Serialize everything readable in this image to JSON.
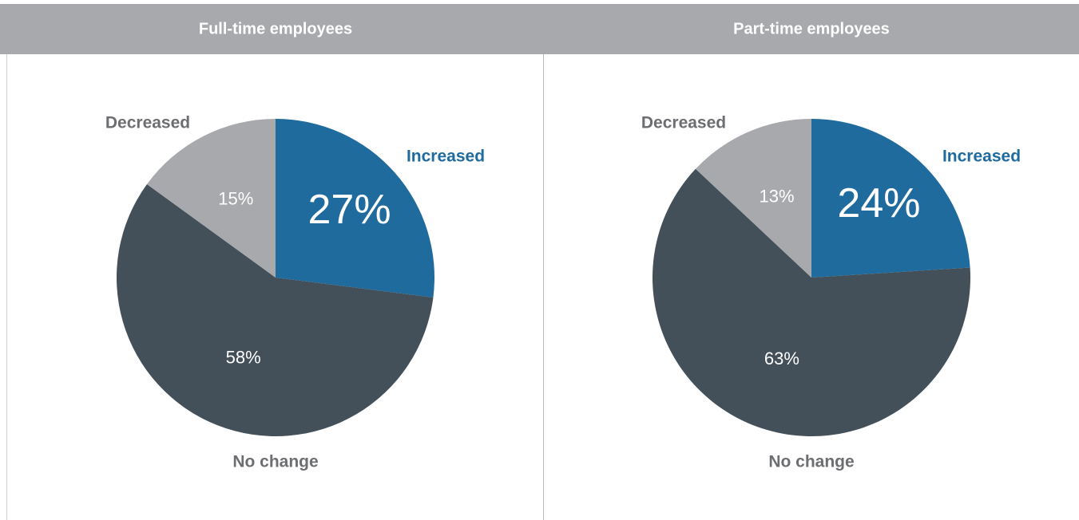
{
  "chart_data": [
    {
      "type": "pie",
      "title": "Full-time employees",
      "categories": [
        "Increased",
        "No change",
        "Decreased"
      ],
      "values": [
        27,
        58,
        15
      ],
      "value_labels": [
        "27%",
        "58%",
        "15%"
      ],
      "colors": [
        "#1f6b9e",
        "#434f59",
        "#a7a9ac"
      ]
    },
    {
      "type": "pie",
      "title": "Part-time employees",
      "categories": [
        "Increased",
        "No change",
        "Decreased"
      ],
      "values": [
        24,
        63,
        13
      ],
      "value_labels": [
        "24%",
        "63%",
        "13%"
      ],
      "colors": [
        "#1f6b9e",
        "#434f59",
        "#a7a9ac"
      ]
    }
  ]
}
